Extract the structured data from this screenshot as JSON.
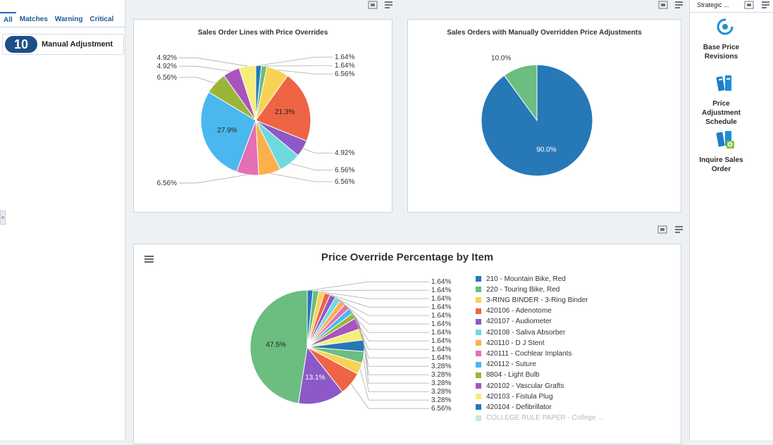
{
  "left_panel": {
    "tabs": [
      "All",
      "Matches",
      "Warning",
      "Critical"
    ],
    "active_tab": "All",
    "count": "10",
    "count_label": "Manual Adjustment",
    "collapse_glyph": "«"
  },
  "right_panel": {
    "title": "Strategic ...",
    "items": [
      {
        "label_lines": [
          "Base Price",
          "Revisions"
        ],
        "icon": "target-refresh-icon"
      },
      {
        "label_lines": [
          "Price",
          "Adjustment",
          "Schedule"
        ],
        "icon": "binders-icon"
      },
      {
        "label_lines": [
          "Inquire Sales",
          "Order"
        ],
        "icon": "binders-search-icon"
      }
    ]
  },
  "colors": {
    "accent": "#1d4f86",
    "tab_text": "#1f5a96"
  },
  "chart1": {
    "title": "Sales Order Lines with Price Overrides",
    "chart_data": {
      "type": "pie",
      "title": "Sales Order Lines with Price Overrides",
      "slices": [
        {
          "value": 1.64,
          "label": "1.64%",
          "color": "#2678b7"
        },
        {
          "value": 1.64,
          "label": "1.64%",
          "color": "#6bbd80"
        },
        {
          "value": 6.56,
          "label": "6.56%",
          "color": "#f8d254"
        },
        {
          "value": 21.3,
          "label": "21.3%",
          "color": "#ee6444"
        },
        {
          "value": 4.92,
          "label": "4.92%",
          "color": "#8d59c8"
        },
        {
          "value": 6.56,
          "label": "6.56%",
          "color": "#6fd9de"
        },
        {
          "value": 6.56,
          "label": "6.56%",
          "color": "#fbb04c"
        },
        {
          "value": 6.56,
          "label": "6.56%",
          "color": "#e56eb5"
        },
        {
          "value": 27.9,
          "label": "27.9%",
          "color": "#4ab8ee"
        },
        {
          "value": 6.56,
          "label": "6.56%",
          "color": "#9ab63a"
        },
        {
          "value": 4.92,
          "label": "4.92%",
          "color": "#a755bd"
        },
        {
          "value": 4.92,
          "label": "4.92%",
          "color": "#f5ee78"
        }
      ]
    }
  },
  "chart2": {
    "title": "Sales Orders with Manually Overridden Price Adjustments",
    "chart_data": {
      "type": "pie",
      "title": "Sales Orders with Manually Overridden Price Adjustments",
      "slices": [
        {
          "value": 90.0,
          "label": "90.0%",
          "color": "#2678b7"
        },
        {
          "value": 10.0,
          "label": "10.0%",
          "color": "#6bbd80"
        }
      ]
    }
  },
  "chart3": {
    "title": "Price Override Percentage by Item",
    "menu_icon": "hamburger-menu-icon",
    "chart_data": {
      "type": "pie",
      "title": "Price Override Percentage by Item",
      "slices": [
        {
          "value": 1.64,
          "label": "1.64%",
          "name": "210 - Mountain Bike, Red",
          "color": "#2678b7"
        },
        {
          "value": 1.64,
          "label": "1.64%",
          "name": "220 - Touring Bike, Red",
          "color": "#6bbd80"
        },
        {
          "value": 1.64,
          "label": "1.64%",
          "name": "3-RING BINDER - 3-Ring Binder",
          "color": "#f8d254"
        },
        {
          "value": 1.64,
          "label": "1.64%",
          "name": "420106 - Adenotome",
          "color": "#ee6444"
        },
        {
          "value": 1.64,
          "label": "1.64%",
          "name": "420107 - Audiometer",
          "color": "#8d59c8"
        },
        {
          "value": 1.64,
          "label": "1.64%",
          "name": "420108 - Saliva Absorber",
          "color": "#6fd9de"
        },
        {
          "value": 1.64,
          "label": "1.64%",
          "name": "420110 - D J Stent",
          "color": "#fbb04c"
        },
        {
          "value": 1.64,
          "label": "1.64%",
          "name": "420111 - Cochlear Implants",
          "color": "#e56eb5"
        },
        {
          "value": 1.64,
          "label": "1.64%",
          "name": "420112 - Suture",
          "color": "#4ab8ee"
        },
        {
          "value": 1.64,
          "label": "1.64%",
          "name": "8804 - Light Bulb",
          "color": "#9ab63a"
        },
        {
          "value": 3.28,
          "label": "3.28%",
          "name": "420102 - Vascular Grafts",
          "color": "#a755bd"
        },
        {
          "value": 3.28,
          "label": "3.28%",
          "name": "420103 - Fistula Plug",
          "color": "#f5ee78"
        },
        {
          "value": 3.28,
          "label": "3.28%",
          "name": "420104 - Defibrillator",
          "color": "#2678b7"
        },
        {
          "value": 3.28,
          "label": "3.28%",
          "name": "COLLEGE RULE PAPER - College ...",
          "color": "#6bbd80"
        },
        {
          "value": 3.28,
          "label": "3.28%",
          "color": "#f8d254"
        },
        {
          "value": 6.56,
          "label": "6.56%",
          "color": "#ee6444"
        },
        {
          "value": 13.1,
          "label": "13.1%",
          "color": "#8d59c8"
        },
        {
          "value": 47.5,
          "label": "47.5%",
          "color": "#6bbd80"
        }
      ],
      "legend": [
        {
          "name": "210 - Mountain Bike, Red",
          "color": "#2678b7"
        },
        {
          "name": "220 - Touring Bike, Red",
          "color": "#6bbd80"
        },
        {
          "name": "3-RING BINDER - 3-Ring Binder",
          "color": "#f8d254"
        },
        {
          "name": "420106 - Adenotome",
          "color": "#ee6444"
        },
        {
          "name": "420107 - Audiometer",
          "color": "#8d59c8"
        },
        {
          "name": "420108 - Saliva Absorber",
          "color": "#6fd9de"
        },
        {
          "name": "420110 - D J Stent",
          "color": "#fbb04c"
        },
        {
          "name": "420111 - Cochlear Implants",
          "color": "#e56eb5"
        },
        {
          "name": "420112 - Suture",
          "color": "#4ab8ee"
        },
        {
          "name": "8804 - Light Bulb",
          "color": "#9ab63a"
        },
        {
          "name": "420102 - Vascular Grafts",
          "color": "#a755bd"
        },
        {
          "name": "420103 - Fistula Plug",
          "color": "#f5ee78"
        },
        {
          "name": "420104 - Defibrillator",
          "color": "#2678b7"
        },
        {
          "name": "COLLEGE RULE PAPER - College ...",
          "color": "#6bbd80"
        }
      ]
    }
  }
}
